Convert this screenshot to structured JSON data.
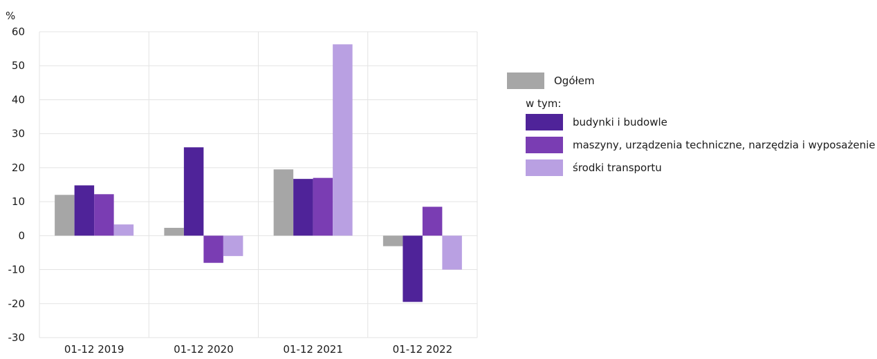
{
  "chart_data": {
    "type": "bar",
    "unit_label": "%",
    "categories": [
      "01-12 2019",
      "01-12 2020",
      "01-12 2021",
      "01-12 2022"
    ],
    "ylim": [
      -30,
      60
    ],
    "yticks": [
      "-30",
      "-20",
      "-10",
      "0",
      "10",
      "20",
      "30",
      "40",
      "50",
      "60"
    ],
    "grid": true,
    "legend_position": "right",
    "series": [
      {
        "name": "Ogółem",
        "color": "#a6a6a6",
        "values": [
          12.0,
          2.3,
          19.5,
          -3.1
        ]
      },
      {
        "name": "budynki i budowle",
        "color": "#4f2399",
        "values": [
          14.8,
          26.0,
          16.7,
          -19.5
        ]
      },
      {
        "name": "maszyny, urządzenia techniczne, narzędzia i wyposażenie",
        "color": "#7a3db3",
        "values": [
          12.2,
          -8.0,
          17.0,
          8.5
        ]
      },
      {
        "name": "środki transportu",
        "color": "#b9a0e2",
        "values": [
          3.3,
          -6.0,
          56.3,
          -10.0
        ]
      }
    ]
  },
  "legend": {
    "total_label": "Ogółem",
    "subheader": "w tym:",
    "items": [
      "budynki i budowle",
      "maszyny, urządzenia techniczne, narzędzia i wyposażenie",
      "środki transportu"
    ]
  }
}
